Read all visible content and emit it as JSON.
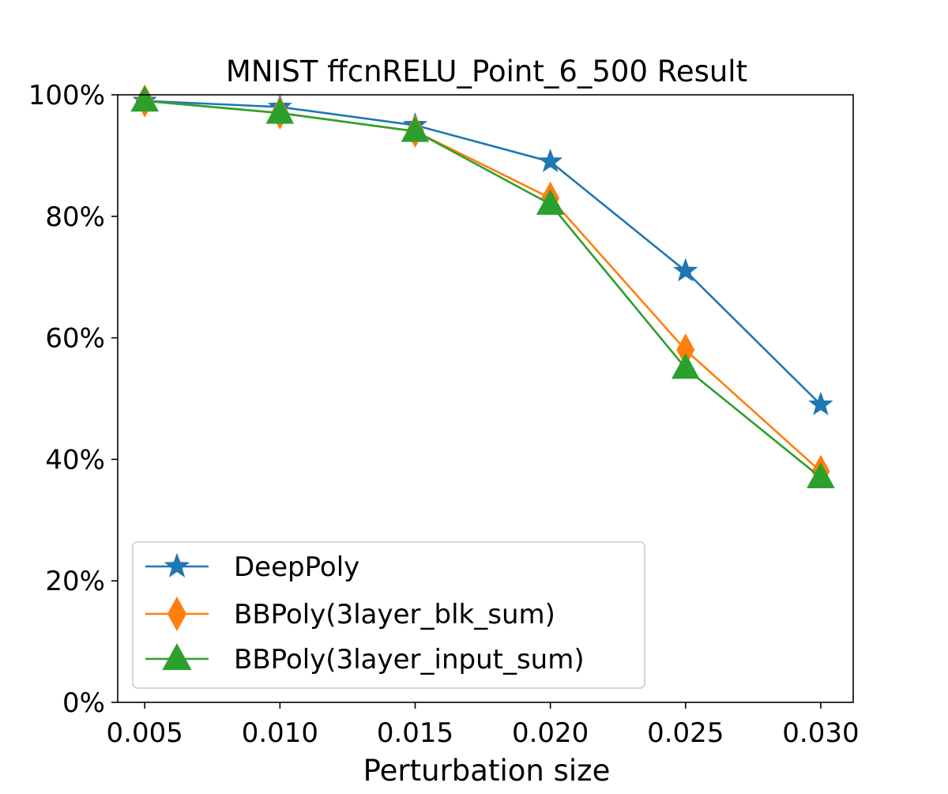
{
  "chart_data": {
    "type": "line",
    "title": "MNIST ffcnRELU_Point_6_500 Result",
    "xlabel": "Perturbation size",
    "ylabel": "",
    "x": [
      0.005,
      0.01,
      0.015,
      0.02,
      0.025,
      0.03
    ],
    "x_tick_labels": [
      "0.005",
      "0.010",
      "0.015",
      "0.020",
      "0.025",
      "0.030"
    ],
    "xlim": [
      0.004,
      0.0312
    ],
    "ylim": [
      0,
      100
    ],
    "y_ticks": [
      0,
      20,
      40,
      60,
      80,
      100
    ],
    "y_tick_labels": [
      "0%",
      "20%",
      "40%",
      "60%",
      "80%",
      "100%"
    ],
    "y_unit": "percent",
    "grid": false,
    "legend_position": "lower-left",
    "series": [
      {
        "name": "DeepPoly",
        "values": [
          99,
          98,
          95,
          89,
          71,
          49
        ],
        "color": "#1f77b4",
        "marker": "star"
      },
      {
        "name": "BBPoly(3layer_blk_sum)",
        "values": [
          99,
          97,
          94,
          83,
          58,
          38
        ],
        "color": "#ff7f0e",
        "marker": "thin-diamond"
      },
      {
        "name": "BBPoly(3layer_input_sum)",
        "values": [
          99,
          97,
          94,
          82,
          55,
          37
        ],
        "color": "#2ca02c",
        "marker": "triangle-up"
      }
    ]
  }
}
